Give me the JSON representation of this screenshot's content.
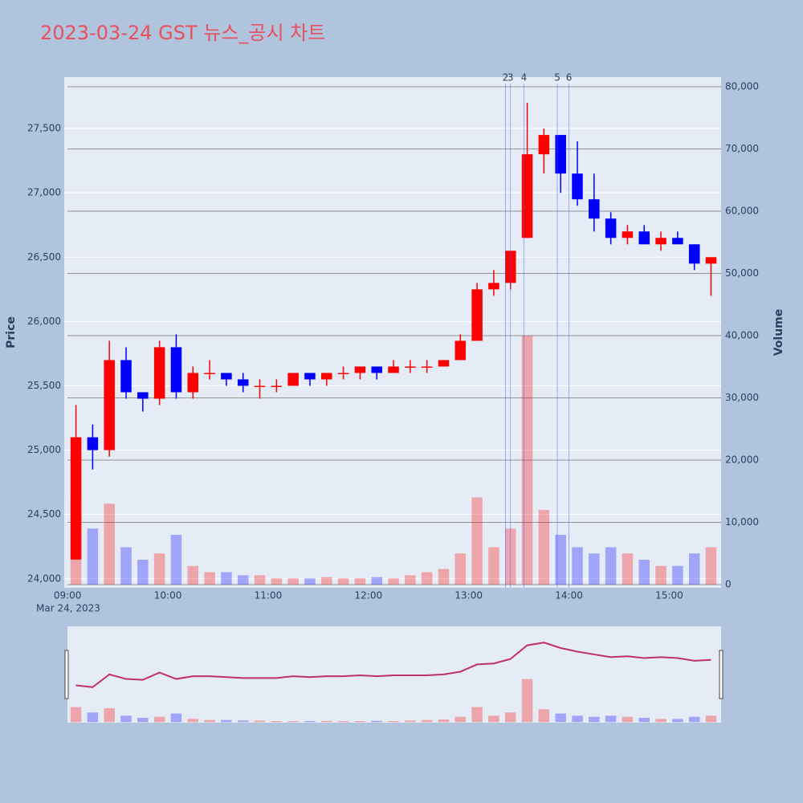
{
  "chart_data": {
    "type": "candlestick",
    "title": "2023-03-24 GST 뉴스_공시 차트",
    "y_label": "Price",
    "y2_label": "Volume",
    "x_date_label": "Mar 24, 2023",
    "x": [
      "09:00",
      "09:10",
      "09:20",
      "09:30",
      "09:40",
      "09:50",
      "10:00",
      "10:10",
      "10:20",
      "10:30",
      "10:40",
      "10:50",
      "11:00",
      "11:10",
      "11:20",
      "11:30",
      "11:40",
      "11:50",
      "12:00",
      "12:10",
      "12:20",
      "12:30",
      "12:40",
      "12:50",
      "13:00",
      "13:10",
      "13:20",
      "13:30",
      "13:40",
      "13:50",
      "14:00",
      "14:10",
      "14:20",
      "14:30",
      "14:40",
      "14:50",
      "15:00",
      "15:10",
      "15:20"
    ],
    "open": [
      24150,
      25100,
      25000,
      25700,
      25450,
      25400,
      25800,
      25450,
      25600,
      25600,
      25550,
      25500,
      25500,
      25500,
      25600,
      25550,
      25600,
      25600,
      25650,
      25600,
      25650,
      25650,
      25650,
      25700,
      25850,
      26250,
      26300,
      26650,
      27300,
      27450,
      27150,
      26950,
      26800,
      26650,
      26700,
      26600,
      26650,
      26600,
      26450
    ],
    "high": [
      25350,
      25200,
      25850,
      25800,
      25450,
      25850,
      25900,
      25650,
      25700,
      25600,
      25600,
      25550,
      25550,
      25600,
      25600,
      25600,
      25650,
      25650,
      25650,
      25700,
      25700,
      25700,
      25700,
      25900,
      26300,
      26400,
      26550,
      27700,
      27500,
      27450,
      27400,
      27150,
      26850,
      26750,
      26750,
      26700,
      26700,
      26600,
      26500
    ],
    "low": [
      24150,
      24850,
      24950,
      25400,
      25300,
      25350,
      25400,
      25400,
      25550,
      25500,
      25450,
      25400,
      25450,
      25500,
      25500,
      25500,
      25550,
      25550,
      25550,
      25600,
      25600,
      25600,
      25650,
      25700,
      25850,
      26200,
      26250,
      26650,
      27150,
      27000,
      26900,
      26700,
      26600,
      26600,
      26600,
      26550,
      26600,
      26400,
      26200
    ],
    "close": [
      25100,
      25000,
      25700,
      25450,
      25400,
      25800,
      25450,
      25600,
      25600,
      25550,
      25500,
      25500,
      25500,
      25600,
      25550,
      25600,
      25600,
      25650,
      25600,
      25650,
      25650,
      25650,
      25700,
      25850,
      26250,
      26300,
      26550,
      27300,
      27450,
      27150,
      26950,
      26800,
      26650,
      26700,
      26600,
      26650,
      26600,
      26450,
      26500
    ],
    "volume": [
      14000,
      9000,
      13000,
      6000,
      4000,
      5000,
      8000,
      3000,
      2000,
      2000,
      1500,
      1500,
      1000,
      1000,
      1000,
      1200,
      1000,
      1000,
      1200,
      1000,
      1500,
      2000,
      2500,
      5000,
      14000,
      6000,
      9000,
      40000,
      12000,
      8000,
      6000,
      5000,
      6000,
      5000,
      4000,
      3000,
      3000,
      5000,
      6000
    ],
    "up_color": "#ff0000",
    "down_color": "#0000ff",
    "xlim": [
      "08:58",
      "15:31"
    ],
    "xticks": [
      "09:00",
      "10:00",
      "11:00",
      "12:00",
      "13:00",
      "14:00",
      "15:00"
    ],
    "ylim": [
      23930,
      27900
    ],
    "yticks": [
      {
        "value": 24000,
        "label": "24,000"
      },
      {
        "value": 24500,
        "label": "24,500"
      },
      {
        "value": 25000,
        "label": "25,000"
      },
      {
        "value": 25500,
        "label": "25,500"
      },
      {
        "value": 26000,
        "label": "26,000"
      },
      {
        "value": 26500,
        "label": "26,500"
      },
      {
        "value": 27000,
        "label": "27,000"
      },
      {
        "value": 27500,
        "label": "27,500"
      }
    ],
    "y2lim": [
      -516,
      81548
    ],
    "y2ticks": [
      0,
      {
        "value": 10000,
        "label": "10,000"
      },
      {
        "value": 20000,
        "label": "20,000"
      },
      {
        "value": 30000,
        "label": "30,000"
      },
      {
        "value": 40000,
        "label": "40,000"
      },
      {
        "value": 50000,
        "label": "50,000"
      },
      {
        "value": 60000,
        "label": "60,000"
      },
      {
        "value": 70000,
        "label": "70,000"
      },
      {
        "value": 80000,
        "label": "80,000"
      }
    ],
    "annotations": [
      {
        "x": "13:22",
        "text": "2"
      },
      {
        "x": "13:25",
        "text": "3"
      },
      {
        "x": "13:33",
        "text": "4"
      },
      {
        "x": "13:53",
        "text": "5"
      },
      {
        "x": "14:00",
        "text": "6"
      }
    ]
  }
}
